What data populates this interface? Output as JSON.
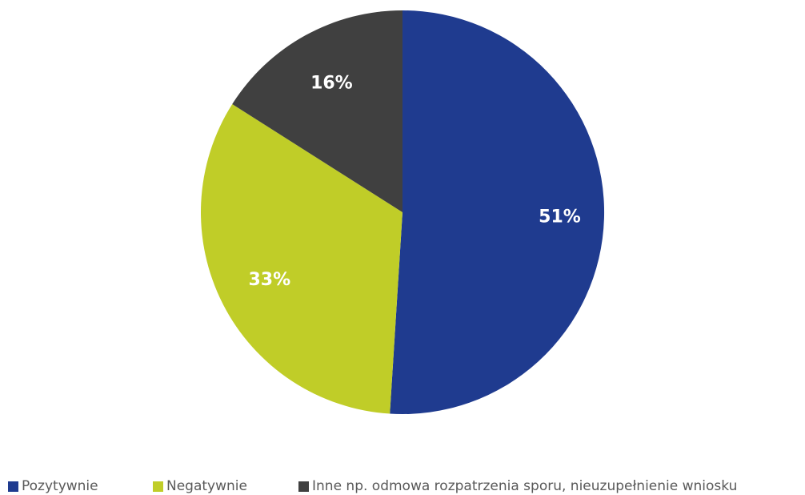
{
  "chart_data": {
    "type": "pie",
    "slices": [
      {
        "label": "Pozytywnie",
        "value": 51,
        "display": "51%",
        "color": "#1f3b8f"
      },
      {
        "label": "Negatywnie",
        "value": 33,
        "display": "33%",
        "color": "#c0cd28"
      },
      {
        "label": "Inne np. odmowa rozpatrzenia sporu, nieuzupełnienie wniosku",
        "value": 16,
        "display": "16%",
        "color": "#404040"
      }
    ],
    "start_angle_deg": 0,
    "direction": "clockwise",
    "legend_position": "bottom"
  }
}
